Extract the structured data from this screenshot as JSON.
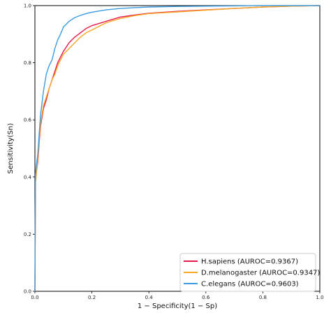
{
  "chart_data": {
    "type": "line",
    "xlabel": "1 − Specificity(1 − Sp)",
    "ylabel": "Sensitivity(Sn)",
    "xlim": [
      0,
      1
    ],
    "ylim": [
      0,
      1
    ],
    "x_ticks": [
      "0.0",
      "0.2",
      "0.4",
      "0.6",
      "0.8",
      "1.0"
    ],
    "y_ticks": [
      "0.0",
      "0.2",
      "0.4",
      "0.6",
      "0.8",
      "1.0"
    ],
    "grid": false,
    "legend_position": "bottom-right",
    "series": [
      {
        "name": "H.sapiens (AUROC=0.9367)",
        "color": "#e6194b",
        "x": [
          0,
          0.002,
          0.005,
          0.01,
          0.015,
          0.02,
          0.03,
          0.04,
          0.05,
          0.06,
          0.07,
          0.08,
          0.09,
          0.1,
          0.12,
          0.14,
          0.16,
          0.18,
          0.2,
          0.25,
          0.3,
          0.35,
          0.4,
          0.5,
          0.6,
          0.7,
          0.8,
          0.9,
          1.0
        ],
        "y": [
          0,
          0.4,
          0.42,
          0.45,
          0.52,
          0.58,
          0.64,
          0.67,
          0.71,
          0.74,
          0.77,
          0.8,
          0.82,
          0.84,
          0.87,
          0.89,
          0.905,
          0.92,
          0.93,
          0.945,
          0.96,
          0.967,
          0.973,
          0.98,
          0.985,
          0.99,
          0.995,
          0.998,
          1.0
        ]
      },
      {
        "name": "D.melanogaster (AUROC=0.9347)",
        "color": "#f5a623",
        "x": [
          0,
          0.002,
          0.005,
          0.01,
          0.015,
          0.02,
          0.03,
          0.04,
          0.05,
          0.06,
          0.07,
          0.08,
          0.09,
          0.1,
          0.12,
          0.14,
          0.16,
          0.18,
          0.2,
          0.25,
          0.3,
          0.35,
          0.4,
          0.5,
          0.6,
          0.7,
          0.8,
          0.9,
          1.0
        ],
        "y": [
          0,
          0.38,
          0.41,
          0.46,
          0.53,
          0.59,
          0.65,
          0.68,
          0.71,
          0.74,
          0.76,
          0.79,
          0.81,
          0.83,
          0.85,
          0.87,
          0.89,
          0.905,
          0.915,
          0.94,
          0.955,
          0.965,
          0.972,
          0.978,
          0.984,
          0.99,
          0.995,
          0.998,
          1.0
        ]
      },
      {
        "name": "C.elegans (AUROC=0.9603)",
        "color": "#3b9be0",
        "x": [
          0,
          0.002,
          0.005,
          0.01,
          0.015,
          0.02,
          0.03,
          0.04,
          0.05,
          0.06,
          0.07,
          0.08,
          0.09,
          0.1,
          0.12,
          0.14,
          0.16,
          0.18,
          0.2,
          0.25,
          0.3,
          0.35,
          0.4,
          0.5,
          0.6,
          0.7,
          0.8,
          0.9,
          1.0
        ],
        "y": [
          0,
          0.41,
          0.44,
          0.48,
          0.55,
          0.62,
          0.7,
          0.76,
          0.79,
          0.81,
          0.85,
          0.88,
          0.9,
          0.925,
          0.945,
          0.958,
          0.966,
          0.972,
          0.977,
          0.985,
          0.99,
          0.993,
          0.995,
          0.997,
          0.998,
          0.999,
          1.0,
          1.0,
          1.0
        ]
      }
    ]
  }
}
